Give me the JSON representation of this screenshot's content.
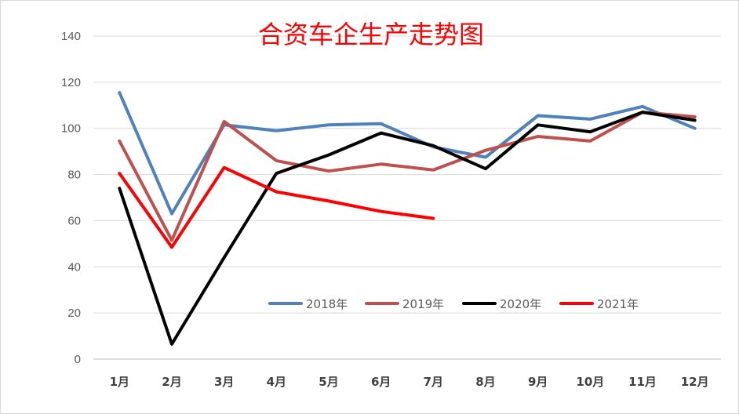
{
  "chart_data": {
    "type": "line",
    "title": "合资车企生产走势图",
    "title_color": "#ff0000",
    "categories": [
      "1月",
      "2月",
      "3月",
      "4月",
      "5月",
      "6月",
      "7月",
      "8月",
      "9月",
      "10月",
      "11月",
      "12月"
    ],
    "ylim": [
      0,
      140
    ],
    "yticks": [
      0,
      20,
      40,
      60,
      80,
      100,
      120,
      140
    ],
    "xlabel": "",
    "ylabel": "",
    "grid": true,
    "legend_position": "bottom-center",
    "series": [
      {
        "name": "2018年",
        "color": "#4f81bd",
        "values": [
          115.5,
          63,
          101.5,
          99,
          101.5,
          102,
          92,
          87.5,
          105.5,
          104,
          109.5,
          100
        ]
      },
      {
        "name": "2019年",
        "color": "#c0504d",
        "values": [
          94.5,
          51.5,
          103,
          86,
          81.5,
          84.5,
          82,
          90.5,
          96.5,
          94.5,
          107,
          105
        ]
      },
      {
        "name": "2020年",
        "color": "#000000",
        "values": [
          74,
          6.5,
          44,
          80.5,
          88.5,
          98,
          92.5,
          82.5,
          101.5,
          98.5,
          107,
          103.5
        ]
      },
      {
        "name": "2021年",
        "color": "#ff0000",
        "values": [
          80.5,
          48.5,
          83,
          72.5,
          68.5,
          64,
          61,
          null,
          null,
          null,
          null,
          null
        ]
      }
    ]
  }
}
